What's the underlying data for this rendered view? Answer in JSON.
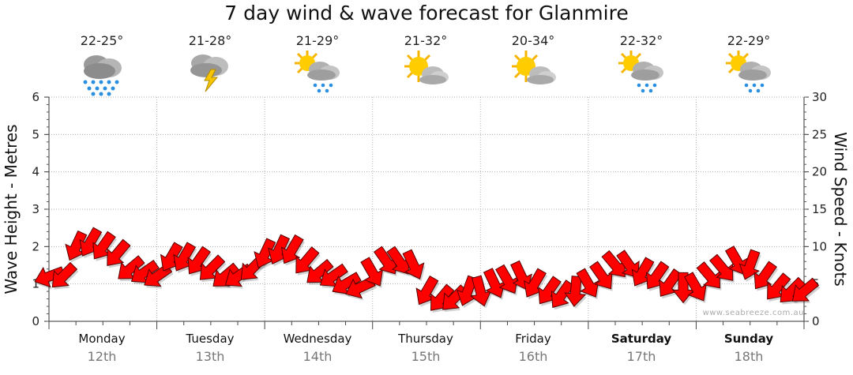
{
  "title": "7 day wind & wave forecast for Glanmire",
  "watermark": "www.seabreeze.com.au",
  "axes": {
    "left_label": "Wave Height - Metres",
    "right_label": "Wind Speed - Knots"
  },
  "days": [
    {
      "name": "Monday",
      "date": "12th",
      "temp": "22-25°",
      "icon": "heavy-rain-cloud-icon",
      "bold": false
    },
    {
      "name": "Tuesday",
      "date": "13th",
      "temp": "21-28°",
      "icon": "thunderstorm-cloud-icon",
      "bold": false
    },
    {
      "name": "Wednesday",
      "date": "14th",
      "temp": "21-29°",
      "icon": "sun-cloud-rain-icon",
      "bold": false
    },
    {
      "name": "Thursday",
      "date": "15th",
      "temp": "21-32°",
      "icon": "partly-cloudy-icon",
      "bold": false
    },
    {
      "name": "Friday",
      "date": "16th",
      "temp": "20-34°",
      "icon": "partly-cloudy-icon",
      "bold": false
    },
    {
      "name": "Saturday",
      "date": "17th",
      "temp": "22-32°",
      "icon": "sun-cloud-rain-icon",
      "bold": true
    },
    {
      "name": "Sunday",
      "date": "18th",
      "temp": "22-29°",
      "icon": "sun-cloud-rain-icon",
      "bold": true
    }
  ],
  "chart_data": {
    "type": "line",
    "x_unit": "day",
    "grid": true,
    "y_left": {
      "label": "Wave Height - Metres",
      "range": [
        0,
        6
      ],
      "ticks": [
        0,
        1,
        2,
        3,
        4,
        5,
        6
      ]
    },
    "y_right": {
      "label": "Wind Speed - Knots",
      "range": [
        0,
        30
      ],
      "ticks": [
        0,
        5,
        10,
        15,
        20,
        25,
        30
      ]
    },
    "series": [
      {
        "type": "wind-arrows",
        "color": "#ff0000",
        "x": [
          0.0,
          0.13,
          0.25,
          0.38,
          0.5,
          0.63,
          0.75,
          0.88,
          1.0,
          1.13,
          1.25,
          1.38,
          1.5,
          1.63,
          1.75,
          1.88,
          2.0,
          2.13,
          2.25,
          2.38,
          2.5,
          2.63,
          2.75,
          2.88,
          3.0,
          3.13,
          3.25,
          3.38,
          3.5,
          3.63,
          3.75,
          3.88,
          4.0,
          4.13,
          4.25,
          4.38,
          4.5,
          4.63,
          4.75,
          4.88,
          5.0,
          5.13,
          5.25,
          5.38,
          5.5,
          5.63,
          5.75,
          5.88,
          6.0,
          6.13,
          6.25,
          6.38,
          6.5,
          6.63,
          6.75,
          6.88,
          7.0
        ],
        "speed_knots": [
          6,
          6,
          10,
          10.5,
          10,
          9,
          7,
          6.5,
          6,
          8.5,
          8.5,
          8,
          7,
          6,
          6,
          7,
          9,
          9.5,
          9.5,
          8,
          6.5,
          6,
          5,
          4.5,
          6.5,
          8,
          8,
          7.5,
          4,
          3,
          3,
          4,
          4,
          5,
          5.5,
          6,
          5,
          4,
          3.5,
          4,
          5,
          6,
          7.5,
          7.5,
          6.5,
          6,
          5,
          4.5,
          4.5,
          6,
          7,
          8,
          7.5,
          6,
          4.5,
          4,
          4
        ],
        "direction_deg": [
          160,
          135,
          115,
          120,
          125,
          130,
          140,
          145,
          145,
          120,
          120,
          125,
          135,
          140,
          145,
          135,
          115,
          115,
          120,
          130,
          140,
          145,
          150,
          155,
          60,
          55,
          55,
          65,
          120,
          130,
          135,
          110,
          75,
          65,
          60,
          65,
          120,
          125,
          125,
          95,
          60,
          55,
          50,
          55,
          120,
          125,
          125,
          90,
          60,
          50,
          50,
          60,
          110,
          125,
          130,
          135,
          140
        ]
      }
    ]
  }
}
